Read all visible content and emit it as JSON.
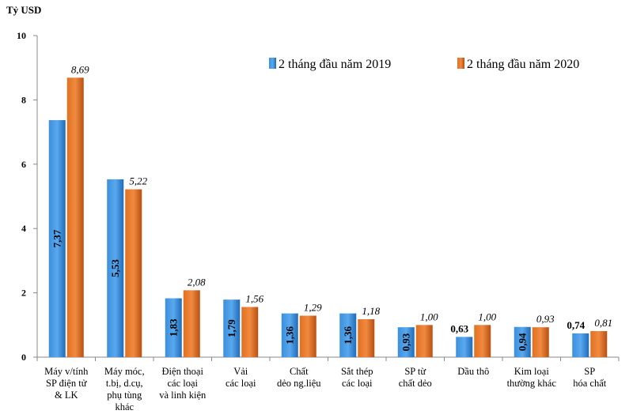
{
  "chart_data": {
    "type": "bar",
    "ylabel": "Tỷ USD",
    "ylim": [
      0,
      10
    ],
    "yticks": [
      "0",
      "2",
      "4",
      "6",
      "8",
      "10"
    ],
    "grid": false,
    "legend_position": "top-right",
    "categories": [
      [
        "Máy v/tính",
        "SP điện tử",
        "& LK"
      ],
      [
        "Máy móc,",
        "t.bị, d.cụ,",
        "phụ tùng",
        "khác"
      ],
      [
        "Điện thoại",
        "các loại",
        "và linh kiện"
      ],
      [
        "Vải",
        "các loại"
      ],
      [
        "Chất",
        "dẻo ng.liệu"
      ],
      [
        "Sắt thép",
        "các loại"
      ],
      [
        "SP từ",
        "chất dẻo"
      ],
      [
        "Dầu thô"
      ],
      [
        "Kim loại",
        "thường khác"
      ],
      [
        "SP",
        "hóa chất"
      ]
    ],
    "series": [
      {
        "name": "2 tháng đầu năm 2019",
        "color": "#3a8fdc",
        "values": [
          7.37,
          5.53,
          1.83,
          1.79,
          1.36,
          1.36,
          0.93,
          0.63,
          0.94,
          0.74
        ],
        "labels": [
          "7,37",
          "5,53",
          "1,83",
          "1,79",
          "1,36",
          "1,36",
          "0,93",
          "0,63",
          "0,94",
          "0,74"
        ]
      },
      {
        "name": "2 tháng đầu năm 2020",
        "color": "#e07020",
        "values": [
          8.69,
          5.22,
          2.08,
          1.56,
          1.29,
          1.18,
          1.0,
          1.0,
          0.93,
          0.81
        ],
        "labels": [
          "8,69",
          "5,22",
          "2,08",
          "1,56",
          "1,29",
          "1,18",
          "1,00",
          "1,00",
          "0,93",
          "0,81"
        ]
      }
    ]
  }
}
